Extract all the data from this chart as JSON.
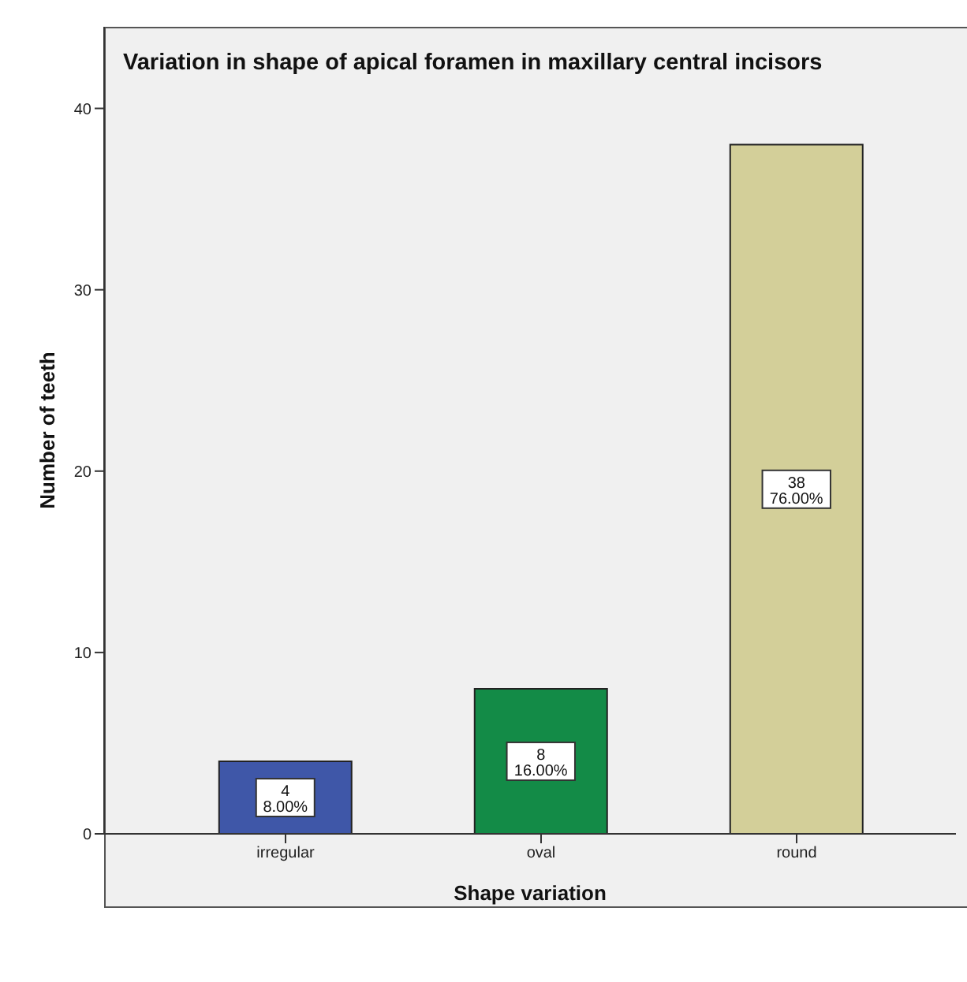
{
  "chart_data": {
    "type": "bar",
    "title": "Variation in shape of apical foramen in maxillary central incisors",
    "xlabel": "Shape variation",
    "ylabel": "Number of teeth",
    "categories": [
      "irregular",
      "oval",
      "round"
    ],
    "values": [
      4,
      8,
      38
    ],
    "colors": [
      "#3f57a8",
      "#138b47",
      "#d3cf99"
    ],
    "value_labels": [
      "4\n8.00%",
      "8\n16.00%",
      "38\n76.00%"
    ],
    "ylim": [
      0,
      44.5
    ],
    "yticks": [
      0,
      10,
      20,
      30,
      40
    ],
    "grid": false,
    "legend": false
  }
}
